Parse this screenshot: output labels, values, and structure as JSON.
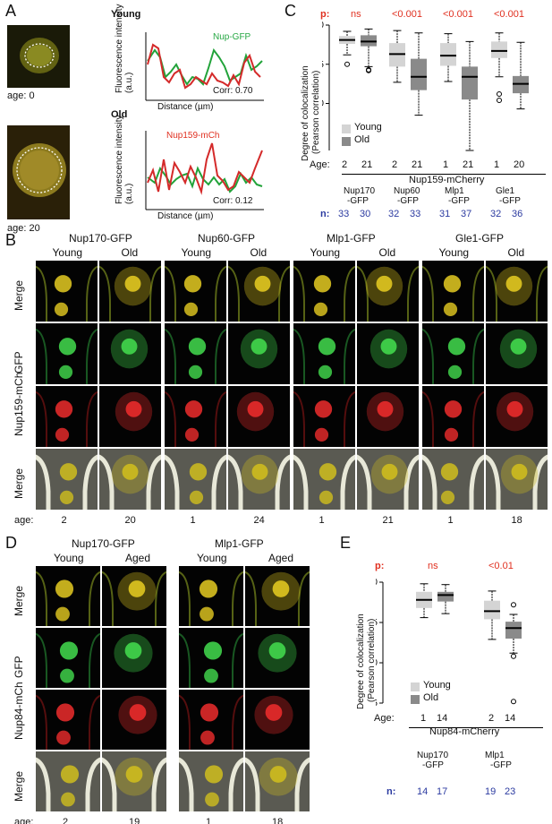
{
  "panelA": {
    "letter": "A",
    "young_label": "Young",
    "old_label": "Old",
    "age0": "age: 0",
    "age20": "age: 20",
    "ylabel": "Fluorescence intensity (a.u.)",
    "xlabel": "Distance (µm)",
    "gfp_label": "Nup-GFP",
    "mch_label": "Nup159-mCh",
    "corr_young": "Corr: 0.70",
    "corr_old": "Corr: 0.12"
  },
  "panelB": {
    "letter": "B",
    "groups": [
      "Nup170-GFP",
      "Nup60-GFP",
      "Mlp1-GFP",
      "Gle1-GFP"
    ],
    "young": "Young",
    "old": "Old",
    "rows": [
      "Merge",
      "GFP",
      "Nup159-mCh",
      "Merge"
    ],
    "age_label": "age:",
    "ages": [
      "2",
      "20",
      "1",
      "24",
      "1",
      "21",
      "1",
      "18"
    ]
  },
  "panelD": {
    "letter": "D",
    "groups": [
      "Nup170-GFP",
      "Mlp1-GFP"
    ],
    "young": "Young",
    "aged": "Aged",
    "rows": [
      "Merge",
      "GFP",
      "Nup84-mCh",
      "Merge"
    ],
    "age_label": "age:",
    "ages": [
      "2",
      "19",
      "1",
      "18"
    ]
  },
  "panelC": {
    "letter": "C",
    "p_label": "p:",
    "p_values": [
      "ns",
      "<0.001",
      "<0.001",
      "<0.001"
    ],
    "ylabel1": "Degree of colocalization",
    "ylabel2": "(Pearson correlation)",
    "legend_young": "Young",
    "legend_old": "Old",
    "age_label": "Age:",
    "ages": [
      "2",
      "21",
      "2",
      "21",
      "1",
      "21",
      "1",
      "20"
    ],
    "reporter": "Nup159-mCherry",
    "proteins": [
      [
        "Nup170",
        "-GFP"
      ],
      [
        "Nup60",
        "-GFP"
      ],
      [
        "Mlp1",
        "-GFP"
      ],
      [
        "Gle1",
        "-GFP"
      ]
    ],
    "n_label": "n:",
    "n": [
      "33",
      "30",
      "32",
      "33",
      "31",
      "37",
      "32",
      "36"
    ],
    "yticks": [
      "1.0",
      "0.5",
      "0.0"
    ]
  },
  "panelE": {
    "letter": "E",
    "p_label": "p:",
    "p_values": [
      "ns",
      "<0.01"
    ],
    "ylabel1": "Degree of colocalization",
    "ylabel2": "(Pearson correlation)",
    "legend_young": "Young",
    "legend_old": "Old",
    "age_label": "Age:",
    "ages": [
      "1",
      "14",
      "2",
      "14"
    ],
    "reporter": "Nup84-mCherry",
    "proteins": [
      [
        "Nup170",
        "-GFP"
      ],
      [
        "Mlp1",
        "-GFP"
      ]
    ],
    "n_label": "n:",
    "n": [
      "14",
      "17",
      "19",
      "23"
    ],
    "yticks": [
      "1.0",
      "0.5",
      "0.0",
      "-0.5"
    ]
  },
  "colors": {
    "young_box": "#d4d4d4",
    "old_box": "#8a8a8a",
    "gfp_line": "#22a33a",
    "mch_line": "#d42a2a",
    "p_red": "#e03020",
    "n_blue": "#2b3aa0"
  },
  "chart_data": [
    {
      "type": "box",
      "panel": "C",
      "ylabel": "Degree of colocalization (Pearson correlation)",
      "ylim": [
        -0.6,
        1.0
      ],
      "categories": [
        "Nup170-GFP",
        "Nup60-GFP",
        "Mlp1-GFP",
        "Gle1-GFP"
      ],
      "series": [
        {
          "name": "Young",
          "values": [
            {
              "min": 0.62,
              "q1": 0.76,
              "median": 0.81,
              "q3": 0.86,
              "max": 0.92,
              "outliers": [
                0.5
              ]
            },
            {
              "min": 0.27,
              "q1": 0.47,
              "median": 0.63,
              "q3": 0.77,
              "max": 0.93,
              "outliers": []
            },
            {
              "min": 0.28,
              "q1": 0.48,
              "median": 0.61,
              "q3": 0.77,
              "max": 0.89,
              "outliers": []
            },
            {
              "min": 0.34,
              "q1": 0.58,
              "median": 0.67,
              "q3": 0.79,
              "max": 0.9,
              "outliers": [
                0.12,
                0.04
              ]
            }
          ]
        },
        {
          "name": "Old",
          "values": [
            {
              "min": 0.47,
              "q1": 0.73,
              "median": 0.79,
              "q3": 0.87,
              "max": 0.95,
              "outliers": [
                0.43,
                0.42
              ]
            },
            {
              "min": -0.15,
              "q1": 0.17,
              "median": 0.34,
              "q3": 0.57,
              "max": 0.9,
              "outliers": []
            },
            {
              "min": -0.6,
              "q1": 0.05,
              "median": 0.34,
              "q3": 0.47,
              "max": 0.79,
              "outliers": []
            },
            {
              "min": -0.07,
              "q1": 0.13,
              "median": 0.25,
              "q3": 0.35,
              "max": 0.78,
              "outliers": []
            }
          ]
        }
      ]
    },
    {
      "type": "box",
      "panel": "E",
      "ylabel": "Degree of colocalization (Pearson correlation)",
      "ylim": [
        -0.6,
        1.0
      ],
      "categories": [
        "Nup170-GFP",
        "Mlp1-GFP"
      ],
      "series": [
        {
          "name": "Young",
          "values": [
            {
              "min": 0.56,
              "q1": 0.68,
              "median": 0.78,
              "q3": 0.88,
              "max": 0.98,
              "outliers": []
            },
            {
              "min": 0.29,
              "q1": 0.54,
              "median": 0.64,
              "q3": 0.77,
              "max": 0.89,
              "outliers": []
            }
          ]
        },
        {
          "name": "Old",
          "values": [
            {
              "min": 0.61,
              "q1": 0.76,
              "median": 0.84,
              "q3": 0.88,
              "max": 0.97,
              "outliers": []
            },
            {
              "min": 0.12,
              "q1": 0.3,
              "median": 0.43,
              "q3": 0.51,
              "max": 0.6,
              "outliers": [
                0.72,
                0.08,
                -0.48
              ]
            }
          ]
        }
      ]
    }
  ]
}
